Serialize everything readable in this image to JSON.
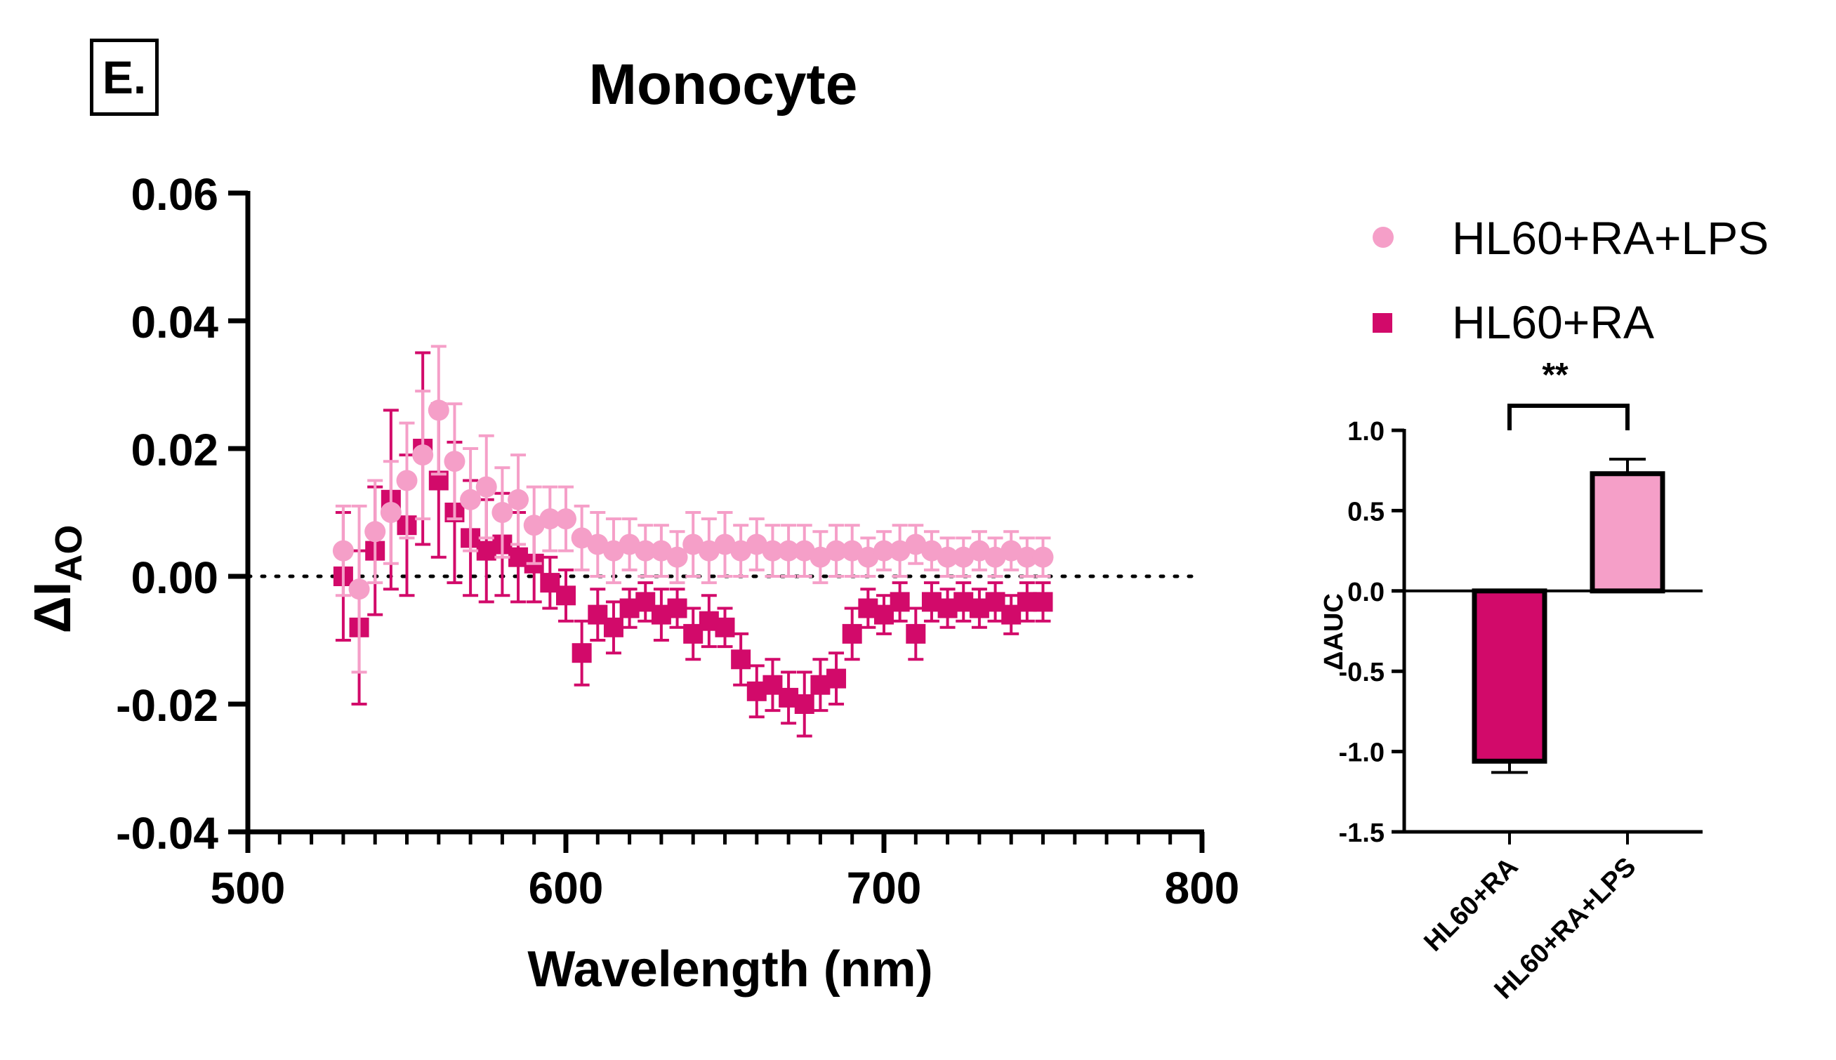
{
  "panel_label": "E.",
  "chart_data": [
    {
      "type": "scatter",
      "title": "Monocyte",
      "xlabel": "Wavelength (nm)",
      "ylabel_main": "ΔI",
      "ylabel_sub": "AO",
      "xlim": [
        500,
        800
      ],
      "ylim": [
        -0.04,
        0.06
      ],
      "xticks": [
        500,
        600,
        700,
        800
      ],
      "xtick_labels": [
        "500",
        "600",
        "700",
        "800"
      ],
      "yticks": [
        -0.04,
        -0.02,
        0.0,
        0.02,
        0.04,
        0.06
      ],
      "ytick_labels": [
        "-0.04",
        "-0.02",
        "0.00",
        "0.02",
        "0.04",
        "0.06"
      ],
      "reference_line": {
        "y": 0,
        "style": "dotted"
      },
      "legend": {
        "position": "top-right",
        "entries": [
          {
            "label": "HL60+RA+LPS",
            "marker": "circle",
            "color": "#F59FC8"
          },
          {
            "label": "HL60+RA",
            "marker": "square",
            "color": "#D20A6A"
          }
        ]
      },
      "series": [
        {
          "name": "HL60+RA",
          "marker": "square",
          "color": "#D20A6A",
          "x": [
            530,
            535,
            540,
            545,
            550,
            555,
            560,
            565,
            570,
            575,
            580,
            585,
            590,
            595,
            600,
            605,
            610,
            615,
            620,
            625,
            630,
            635,
            640,
            645,
            650,
            655,
            660,
            665,
            670,
            675,
            680,
            685,
            690,
            695,
            700,
            705,
            710,
            715,
            720,
            725,
            730,
            735,
            740,
            745,
            750
          ],
          "y": [
            0.0,
            -0.008,
            0.004,
            0.012,
            0.008,
            0.02,
            0.015,
            0.01,
            0.006,
            0.004,
            0.005,
            0.003,
            0.002,
            -0.001,
            -0.003,
            -0.012,
            -0.006,
            -0.008,
            -0.005,
            -0.004,
            -0.006,
            -0.005,
            -0.009,
            -0.007,
            -0.008,
            -0.013,
            -0.018,
            -0.017,
            -0.019,
            -0.02,
            -0.017,
            -0.016,
            -0.009,
            -0.005,
            -0.006,
            -0.004,
            -0.009,
            -0.004,
            -0.005,
            -0.004,
            -0.005,
            -0.004,
            -0.006,
            -0.004,
            -0.004
          ],
          "err": [
            0.01,
            0.012,
            0.01,
            0.014,
            0.011,
            0.015,
            0.012,
            0.011,
            0.009,
            0.008,
            0.008,
            0.007,
            0.006,
            0.004,
            0.004,
            0.005,
            0.004,
            0.004,
            0.003,
            0.003,
            0.004,
            0.003,
            0.004,
            0.004,
            0.003,
            0.004,
            0.004,
            0.004,
            0.004,
            0.005,
            0.004,
            0.004,
            0.004,
            0.003,
            0.003,
            0.003,
            0.004,
            0.003,
            0.003,
            0.003,
            0.003,
            0.003,
            0.003,
            0.003,
            0.003
          ]
        },
        {
          "name": "HL60+RA+LPS",
          "marker": "circle",
          "color": "#F59FC8",
          "x": [
            530,
            535,
            540,
            545,
            550,
            555,
            560,
            565,
            570,
            575,
            580,
            585,
            590,
            595,
            600,
            605,
            610,
            615,
            620,
            625,
            630,
            635,
            640,
            645,
            650,
            655,
            660,
            665,
            670,
            675,
            680,
            685,
            690,
            695,
            700,
            705,
            710,
            715,
            720,
            725,
            730,
            735,
            740,
            745,
            750
          ],
          "y": [
            0.004,
            -0.002,
            0.007,
            0.01,
            0.015,
            0.019,
            0.026,
            0.018,
            0.012,
            0.014,
            0.01,
            0.012,
            0.008,
            0.009,
            0.009,
            0.006,
            0.005,
            0.004,
            0.005,
            0.004,
            0.004,
            0.003,
            0.005,
            0.004,
            0.005,
            0.004,
            0.005,
            0.004,
            0.004,
            0.004,
            0.003,
            0.004,
            0.004,
            0.003,
            0.004,
            0.004,
            0.005,
            0.004,
            0.003,
            0.003,
            0.004,
            0.003,
            0.004,
            0.003,
            0.003
          ],
          "err": [
            0.007,
            0.013,
            0.008,
            0.008,
            0.009,
            0.01,
            0.01,
            0.009,
            0.008,
            0.008,
            0.007,
            0.007,
            0.006,
            0.005,
            0.005,
            0.005,
            0.005,
            0.005,
            0.004,
            0.004,
            0.004,
            0.004,
            0.005,
            0.005,
            0.005,
            0.004,
            0.004,
            0.004,
            0.004,
            0.004,
            0.004,
            0.004,
            0.004,
            0.003,
            0.003,
            0.004,
            0.003,
            0.003,
            0.003,
            0.003,
            0.003,
            0.003,
            0.003,
            0.003,
            0.003
          ]
        }
      ]
    },
    {
      "type": "bar",
      "ylabel": "ΔAUC",
      "categories": [
        "HL60+RA",
        "HL60+RA+LPS"
      ],
      "values": [
        -1.06,
        0.73
      ],
      "errors": [
        0.07,
        0.09
      ],
      "colors": [
        "#D20A6A",
        "#F59FC8"
      ],
      "ylim": [
        -1.5,
        1.0
      ],
      "yticks": [
        -1.5,
        -1.0,
        -0.5,
        0.0,
        0.5,
        1.0
      ],
      "ytick_labels": [
        "-1.5",
        "-1.0",
        "-0.5",
        "0.0",
        "0.5",
        "1.0"
      ],
      "significance": "**"
    }
  ]
}
